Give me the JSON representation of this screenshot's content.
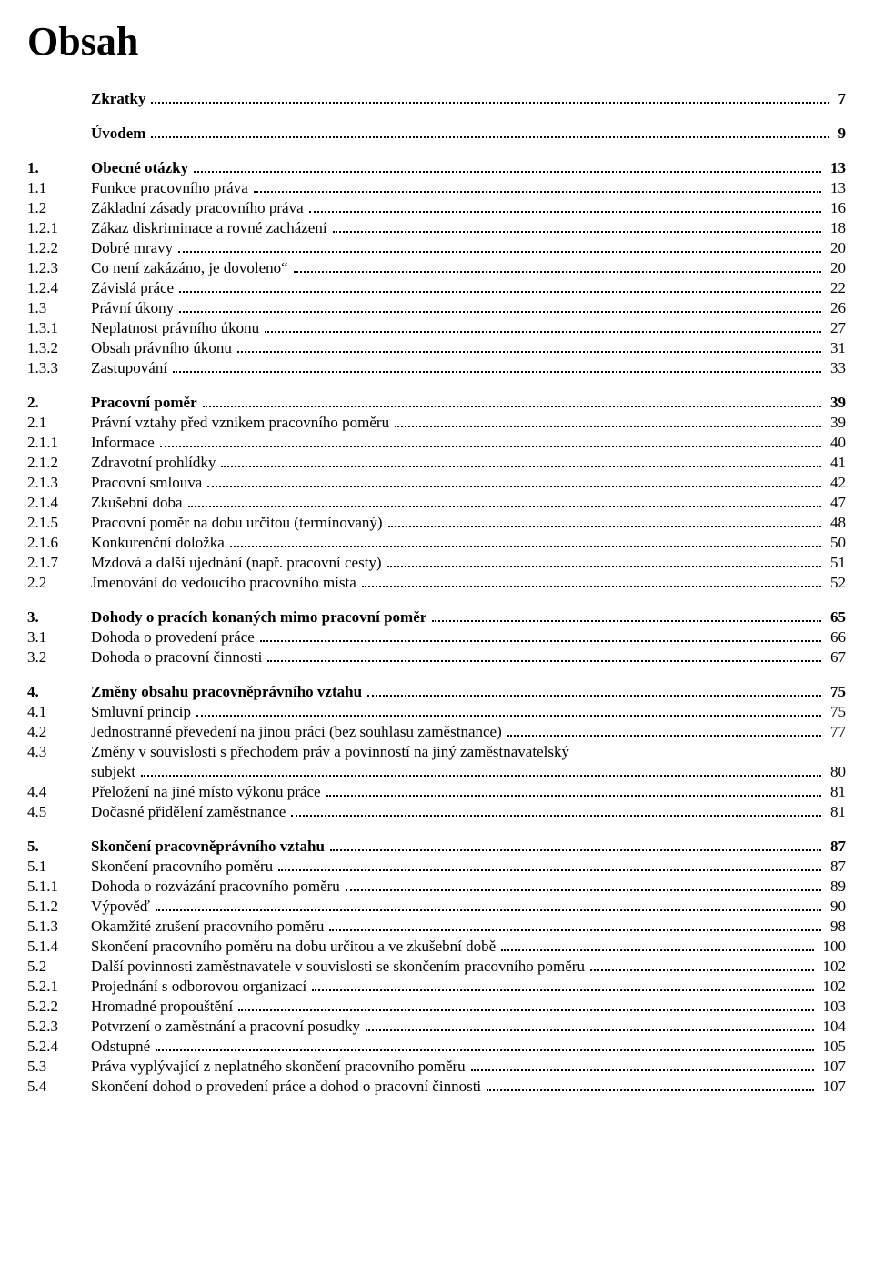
{
  "title": "Obsah",
  "entries": [
    {
      "num": "",
      "label": "Zkratky",
      "page": "7",
      "bold": true,
      "spacer": false
    },
    {
      "num": "",
      "label": "Úvodem",
      "page": "9",
      "bold": true,
      "spacer": true
    },
    {
      "num": "1.",
      "label": "Obecné otázky",
      "page": "13",
      "bold": true,
      "spacer": true
    },
    {
      "num": "1.1",
      "label": "Funkce pracovního práva",
      "page": "13",
      "bold": false,
      "spacer": false
    },
    {
      "num": "1.2",
      "label": "Základní zásady pracovního práva",
      "page": "16",
      "bold": false,
      "spacer": false
    },
    {
      "num": "1.2.1",
      "label": "Zákaz diskriminace a rovné zacházení",
      "page": "18",
      "bold": false,
      "spacer": false
    },
    {
      "num": "1.2.2",
      "label": "Dobré mravy",
      "page": "20",
      "bold": false,
      "spacer": false
    },
    {
      "num": "1.2.3",
      "label": "Co není zakázáno, je dovoleno“",
      "page": "20",
      "bold": false,
      "spacer": false
    },
    {
      "num": "1.2.4",
      "label": "Závislá práce",
      "page": "22",
      "bold": false,
      "spacer": false
    },
    {
      "num": "1.3",
      "label": "Právní úkony",
      "page": "26",
      "bold": false,
      "spacer": false
    },
    {
      "num": "1.3.1",
      "label": "Neplatnost právního úkonu",
      "page": "27",
      "bold": false,
      "spacer": false
    },
    {
      "num": "1.3.2",
      "label": "Obsah právního úkonu",
      "page": "31",
      "bold": false,
      "spacer": false
    },
    {
      "num": "1.3.3",
      "label": "Zastupování",
      "page": "33",
      "bold": false,
      "spacer": false
    },
    {
      "num": "2.",
      "label": "Pracovní poměr",
      "page": "39",
      "bold": true,
      "spacer": true
    },
    {
      "num": "2.1",
      "label": "Právní vztahy před vznikem pracovního poměru",
      "page": "39",
      "bold": false,
      "spacer": false
    },
    {
      "num": "2.1.1",
      "label": "Informace",
      "page": "40",
      "bold": false,
      "spacer": false
    },
    {
      "num": "2.1.2",
      "label": "Zdravotní prohlídky",
      "page": "41",
      "bold": false,
      "spacer": false
    },
    {
      "num": "2.1.3",
      "label": "Pracovní smlouva",
      "page": "42",
      "bold": false,
      "spacer": false
    },
    {
      "num": "2.1.4",
      "label": "Zkušební doba",
      "page": "47",
      "bold": false,
      "spacer": false
    },
    {
      "num": "2.1.5",
      "label": "Pracovní poměr na dobu určitou (termínovaný)",
      "page": "48",
      "bold": false,
      "spacer": false
    },
    {
      "num": "2.1.6",
      "label": "Konkurenční doložka",
      "page": "50",
      "bold": false,
      "spacer": false
    },
    {
      "num": "2.1.7",
      "label": "Mzdová a další ujednání (např. pracovní cesty)",
      "page": "51",
      "bold": false,
      "spacer": false
    },
    {
      "num": "2.2",
      "label": "Jmenování do vedoucího pracovního místa",
      "page": "52",
      "bold": false,
      "spacer": false
    },
    {
      "num": "3.",
      "label": "Dohody o pracích konaných mimo pracovní poměr",
      "page": "65",
      "bold": true,
      "spacer": true
    },
    {
      "num": "3.1",
      "label": "Dohoda o provedení práce",
      "page": "66",
      "bold": false,
      "spacer": false
    },
    {
      "num": "3.2",
      "label": "Dohoda o pracovní činnosti",
      "page": "67",
      "bold": false,
      "spacer": false
    },
    {
      "num": "4.",
      "label": "Změny obsahu pracovněprávního vztahu",
      "page": "75",
      "bold": true,
      "spacer": true
    },
    {
      "num": "4.1",
      "label": "Smluvní princip",
      "page": "75",
      "bold": false,
      "spacer": false
    },
    {
      "num": "4.2",
      "label": "Jednostranné převedení na jinou práci (bez souhlasu zaměstnance)",
      "page": "77",
      "bold": false,
      "spacer": false
    },
    {
      "num": "4.3",
      "label": "Změny v souvislosti s přechodem práv a povinností na jiný zaměstnavatelský",
      "page": "",
      "bold": false,
      "spacer": false,
      "nodots": true
    },
    {
      "num": "",
      "label": "subjekt",
      "page": "80",
      "bold": false,
      "spacer": false,
      "indent": true
    },
    {
      "num": "4.4",
      "label": "Přeložení na jiné místo výkonu práce",
      "page": "81",
      "bold": false,
      "spacer": false
    },
    {
      "num": "4.5",
      "label": "Dočasné přidělení zaměstnance",
      "page": "81",
      "bold": false,
      "spacer": false
    },
    {
      "num": "5.",
      "label": "Skončení pracovněprávního vztahu",
      "page": "87",
      "bold": true,
      "spacer": true
    },
    {
      "num": "5.1",
      "label": "Skončení pracovního poměru",
      "page": "87",
      "bold": false,
      "spacer": false
    },
    {
      "num": "5.1.1",
      "label": "Dohoda o rozvázání pracovního poměru",
      "page": "89",
      "bold": false,
      "spacer": false
    },
    {
      "num": "5.1.2",
      "label": "Výpověď",
      "page": "90",
      "bold": false,
      "spacer": false
    },
    {
      "num": "5.1.3",
      "label": "Okamžité zrušení pracovního poměru",
      "page": "98",
      "bold": false,
      "spacer": false
    },
    {
      "num": "5.1.4",
      "label": "Skončení pracovního poměru na dobu určitou a ve zkušební době",
      "page": "100",
      "bold": false,
      "spacer": false
    },
    {
      "num": "5.2",
      "label": "Další povinnosti zaměstnavatele v souvislosti se skončením pracovního poměru",
      "page": "102",
      "bold": false,
      "spacer": false
    },
    {
      "num": "5.2.1",
      "label": "Projednání s odborovou organizací",
      "page": "102",
      "bold": false,
      "spacer": false
    },
    {
      "num": "5.2.2",
      "label": "Hromadné propouštění",
      "page": "103",
      "bold": false,
      "spacer": false
    },
    {
      "num": "5.2.3",
      "label": "Potvrzení o zaměstnání a pracovní posudky",
      "page": "104",
      "bold": false,
      "spacer": false
    },
    {
      "num": "5.2.4",
      "label": "Odstupné",
      "page": "105",
      "bold": false,
      "spacer": false
    },
    {
      "num": "5.3",
      "label": "Práva vyplývající z neplatného skončení pracovního poměru",
      "page": "107",
      "bold": false,
      "spacer": false
    },
    {
      "num": "5.4",
      "label": "Skončení dohod o provedení práce a dohod o pracovní činnosti",
      "page": "107",
      "bold": false,
      "spacer": false
    }
  ]
}
